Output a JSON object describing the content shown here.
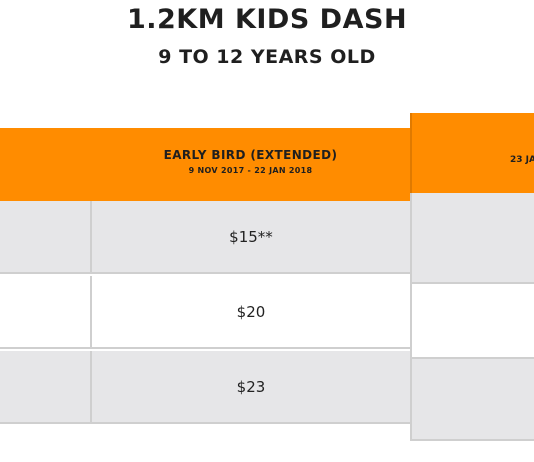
{
  "header": {
    "title": "1.2KM KIDS DASH",
    "subtitle": "9 TO 12 YEARS OLD"
  },
  "pricing_table": {
    "column": {
      "title": "EARLY BIRD (EXTENDED)",
      "dates": "9 NOV 2017 - 22 JAN 2018"
    },
    "next_column_partial_label": "23 JA",
    "rows": [
      {
        "price": "$15**"
      },
      {
        "price": "$20"
      },
      {
        "price": "$23"
      }
    ]
  },
  "colors": {
    "header_orange": "#ff8c00",
    "row_gray": "#e6e6e8",
    "border": "#cfcfcf",
    "text": "#1f1f1f"
  }
}
